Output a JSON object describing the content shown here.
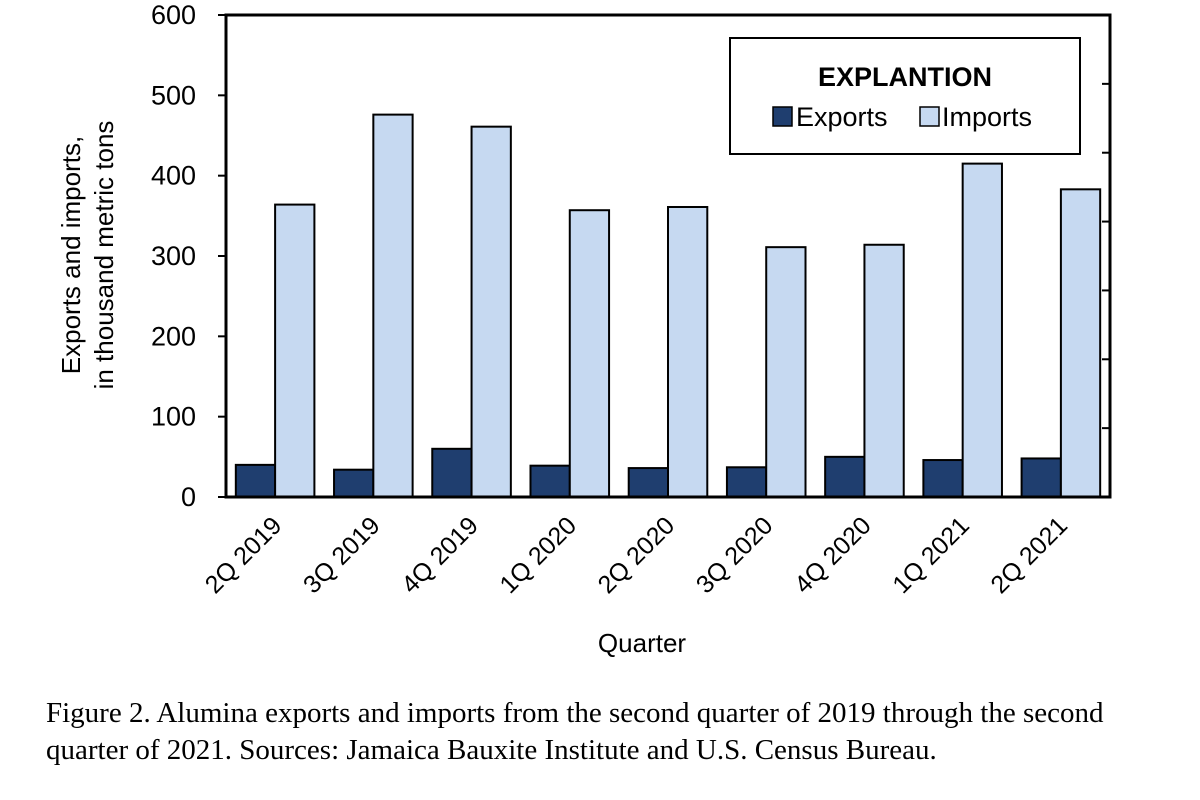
{
  "chart_data": {
    "type": "bar",
    "categories": [
      "2Q 2019",
      "3Q 2019",
      "4Q 2019",
      "1Q 2020",
      "2Q 2020",
      "3Q 2020",
      "4Q 2020",
      "1Q 2021",
      "2Q 2021"
    ],
    "series": [
      {
        "name": "Exports",
        "color": "#1f3e6f",
        "values": [
          40,
          34,
          60,
          39,
          36,
          37,
          50,
          46,
          48
        ]
      },
      {
        "name": "Imports",
        "color": "#c6d9f1",
        "values": [
          364,
          476,
          461,
          357,
          361,
          311,
          314,
          415,
          383
        ]
      }
    ],
    "xlabel": "Quarter",
    "ylabel_line1": "Exports and imports,",
    "ylabel_line2": "in thousand metric tons",
    "ylim": [
      0,
      600
    ],
    "yticks": [
      0,
      100,
      200,
      300,
      400,
      500,
      600
    ],
    "legend_title": "EXPLANTION",
    "legend_position": "top-right",
    "grid": false
  },
  "caption": "Figure 2. Alumina exports and imports from the second quarter of 2019 through the second quarter of 2021. Sources: Jamaica Bauxite Institute and U.S. Census Bureau."
}
